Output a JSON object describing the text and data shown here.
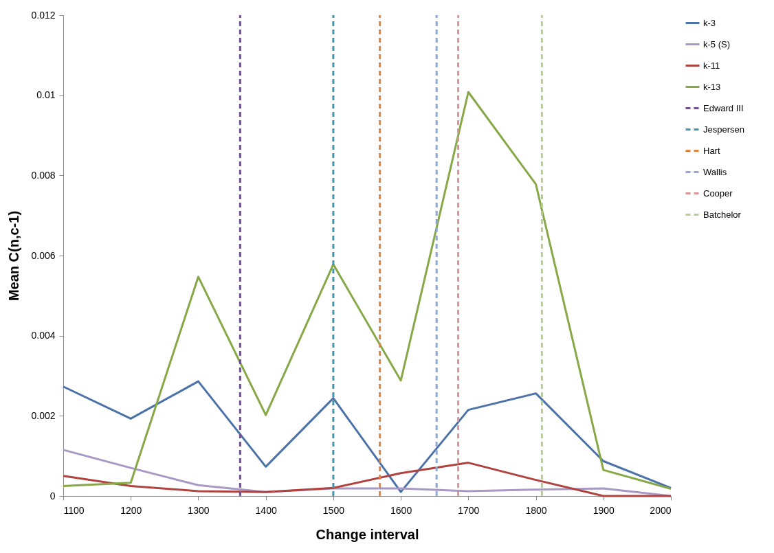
{
  "chart_data": {
    "type": "line",
    "xlabel": "Change interval",
    "ylabel": "Mean C(n,c-1)",
    "x": [
      1100,
      1200,
      1300,
      1400,
      1500,
      1600,
      1700,
      1800,
      1900,
      2000
    ],
    "xlim": [
      1100,
      2000
    ],
    "xticks": [
      1100,
      1200,
      1300,
      1400,
      1500,
      1600,
      1700,
      1800,
      1900,
      2000
    ],
    "ylim": [
      0,
      0.012
    ],
    "yticks": [
      0,
      0.002,
      0.004,
      0.006,
      0.008,
      0.01,
      0.012
    ],
    "grid": false,
    "legend": "right",
    "line_style": "solid",
    "marker": "none",
    "series": [
      {
        "name": "k-3",
        "color": "#4a72a8",
        "values": [
          0.00273,
          0.00193,
          0.00286,
          0.00073,
          0.00244,
          0.0001,
          0.00215,
          0.00256,
          0.00087,
          0.0002
        ]
      },
      {
        "name": "k-5 (S)",
        "color": "#a898c4",
        "values": [
          0.00115,
          0.0007,
          0.00027,
          0.0001,
          0.00019,
          0.00019,
          0.00012,
          0.00016,
          0.00019,
          0.0
        ]
      },
      {
        "name": "k-11",
        "color": "#b0433f",
        "values": [
          0.0005,
          0.00025,
          0.00012,
          0.0001,
          0.0002,
          0.00057,
          0.00083,
          0.0004,
          0.0,
          0.0
        ]
      },
      {
        "name": "k-13",
        "color": "#86a846",
        "values": [
          0.00025,
          0.00033,
          0.00547,
          0.00202,
          0.00578,
          0.00288,
          0.01008,
          0.00778,
          0.00065,
          0.00018
        ]
      },
      {
        "name": "Edward III",
        "type": "line",
        "line_style": "dashed",
        "color": "#6f4f93",
        "x": [
          1362,
          1362
        ],
        "values": [
          0,
          0.012
        ]
      },
      {
        "name": "Jespersen",
        "type": "line",
        "line_style": "dashed",
        "color": "#3a98b0",
        "x": [
          1500,
          1500
        ],
        "values": [
          0,
          0.012
        ]
      },
      {
        "name": "Hart",
        "type": "line",
        "line_style": "dashed",
        "color": "#e3823a",
        "x": [
          1569,
          1569
        ],
        "values": [
          0,
          0.012
        ]
      },
      {
        "name": "Wallis",
        "type": "line",
        "line_style": "dashed",
        "color": "#8ea8d3",
        "x": [
          1653,
          1653
        ],
        "values": [
          0,
          0.012
        ]
      },
      {
        "name": "Cooper",
        "type": "line",
        "line_style": "dashed",
        "color": "#d89593",
        "x": [
          1685,
          1685
        ],
        "values": [
          0,
          0.012
        ]
      },
      {
        "name": "Batchelor",
        "type": "line",
        "line_style": "dashed",
        "color": "#b4cf8e",
        "x": [
          1809,
          1809
        ],
        "values": [
          0,
          0.012
        ]
      }
    ]
  }
}
